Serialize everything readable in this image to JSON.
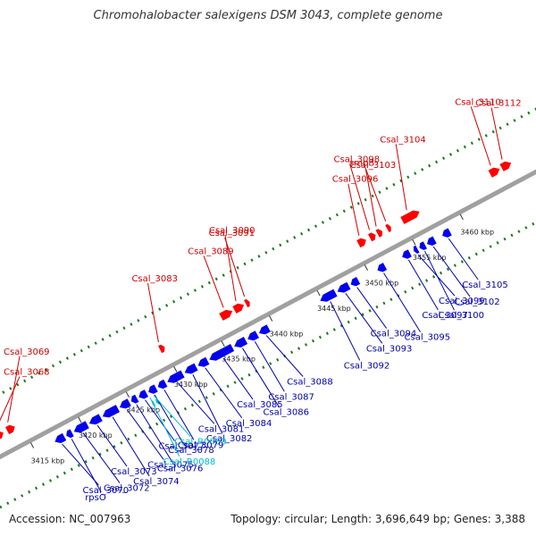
{
  "title": "Chromohalobacter salexigens DSM 3043, complete genome",
  "footer": {
    "accession": "Accession: NC_007963",
    "summary": "Topology: circular; Length: 3,696,649 bp; Genes: 3,388"
  },
  "colors": {
    "axis": "#a0a0a0",
    "fwd_cds": "#ff0000",
    "rev_cds": "#0000ee",
    "fwd_label": "#cc0000",
    "rev_label": "#0000aa",
    "rna_label": "#00bbcc",
    "dots": "#1a7a1a"
  },
  "ticks": [
    {
      "kbp": 3415,
      "label": "3415 kbp"
    },
    {
      "kbp": 3420,
      "label": "3420 kbp"
    },
    {
      "kbp": 3425,
      "label": "3425 kbp"
    },
    {
      "kbp": 3430,
      "label": "3430 kbp"
    },
    {
      "kbp": 3435,
      "label": "3435 kbp"
    },
    {
      "kbp": 3440,
      "label": "3440 kbp"
    },
    {
      "kbp": 3445,
      "label": "3445 kbp"
    },
    {
      "kbp": 3450,
      "label": "3450 kbp"
    },
    {
      "kbp": 3455,
      "label": "3455 kbp"
    },
    {
      "kbp": 3460,
      "label": "3460 kbp"
    }
  ],
  "forward_genes": [
    {
      "name": "Csal_3068",
      "start": 3412.4,
      "end": 3413.2
    },
    {
      "name": "Csal_3069",
      "start": 3413.6,
      "end": 3414.4
    },
    {
      "name": "Csal_3083",
      "start": 3429.6,
      "end": 3430.1
    },
    {
      "name": "Csal_3089",
      "start": 3436.0,
      "end": 3437.2
    },
    {
      "name": "Csal_3090",
      "start": 3437.4,
      "end": 3438.4
    },
    {
      "name": "Csal_3091",
      "start": 3438.6,
      "end": 3439.0
    },
    {
      "name": "Csal_3096",
      "start": 3450.4,
      "end": 3451.2
    },
    {
      "name": "Csal_3098",
      "start": 3451.6,
      "end": 3452.2
    },
    {
      "name": "smpB",
      "start": 3452.4,
      "end": 3452.9
    },
    {
      "name": "Csal_3103",
      "start": 3453.4,
      "end": 3453.8
    },
    {
      "name": "Csal_3104",
      "start": 3455.0,
      "end": 3456.8
    },
    {
      "name": "Csal_3110",
      "start": 3464.2,
      "end": 3465.2
    },
    {
      "name": "Csal_3112",
      "start": 3465.4,
      "end": 3466.4
    }
  ],
  "reverse_genes": [
    {
      "name": "Csal_3070",
      "start": 3417.0,
      "end": 3418.0
    },
    {
      "name": "rpsO",
      "start": 3418.2,
      "end": 3418.8
    },
    {
      "name": "Csal_3072",
      "start": 3419.0,
      "end": 3420.4
    },
    {
      "name": "Csal_3073",
      "start": 3420.6,
      "end": 3421.8
    },
    {
      "name": "Csal_3074",
      "start": 3422.0,
      "end": 3423.6
    },
    {
      "name": "Csal_3075",
      "start": 3423.8,
      "end": 3424.8
    },
    {
      "name": "Csal_3076",
      "start": 3425.0,
      "end": 3425.6
    },
    {
      "name": "Csal_3077",
      "start": 3425.8,
      "end": 3426.6
    },
    {
      "name": "Csal_3078",
      "start": 3426.8,
      "end": 3427.6
    },
    {
      "name": "Csal_3079",
      "start": 3427.8,
      "end": 3428.6
    },
    {
      "name": "Csal_3081",
      "start": 3428.8,
      "end": 3430.4
    },
    {
      "name": "Csal_3082",
      "start": 3430.6,
      "end": 3431.8
    },
    {
      "name": "Csal_3084",
      "start": 3432.0,
      "end": 3433.0
    },
    {
      "name": "Csal_3085",
      "start": 3433.2,
      "end": 3435.6
    },
    {
      "name": "Csal_3086",
      "start": 3435.8,
      "end": 3437.0
    },
    {
      "name": "Csal_3087",
      "start": 3437.2,
      "end": 3438.2
    },
    {
      "name": "Csal_3088",
      "start": 3438.4,
      "end": 3439.4
    },
    {
      "name": "Csal_3092",
      "start": 3444.8,
      "end": 3446.4
    },
    {
      "name": "Csal_3093",
      "start": 3446.6,
      "end": 3447.8
    },
    {
      "name": "Csal_3094",
      "start": 3448.0,
      "end": 3448.8
    },
    {
      "name": "Csal_3095",
      "start": 3450.8,
      "end": 3451.6
    },
    {
      "name": "Csal_3097",
      "start": 3453.4,
      "end": 3454.2
    },
    {
      "name": "Csal_3099",
      "start": 3454.6,
      "end": 3455.0
    },
    {
      "name": "Csal_3100",
      "start": 3455.2,
      "end": 3455.8
    },
    {
      "name": "Csal_3102",
      "start": 3456.0,
      "end": 3456.8
    },
    {
      "name": "Csal_3105",
      "start": 3457.6,
      "end": 3458.4
    }
  ],
  "rna_genes": [
    {
      "name": "Csal_R0088",
      "start": 3426.6,
      "end": 3426.8
    },
    {
      "name": "Csal_R0089",
      "start": 3427.0,
      "end": 3427.2
    }
  ],
  "labels": [
    {
      "name": "Csal_3112",
      "strand": "fwd",
      "kbp": 3465.8
    },
    {
      "name": "Csal_3110",
      "strand": "fwd",
      "kbp": 3464.6
    },
    {
      "name": "Csal_3104",
      "strand": "fwd",
      "kbp": 3455.8
    },
    {
      "name": "Csal_3103",
      "strand": "fwd",
      "kbp": 3453.6
    },
    {
      "name": "smpB",
      "strand": "fwd",
      "kbp": 3452.6
    },
    {
      "name": "Csal_3098",
      "strand": "fwd",
      "kbp": 3451.9
    },
    {
      "name": "Csal_3096",
      "strand": "fwd",
      "kbp": 3450.8
    },
    {
      "name": "Csal_3091",
      "strand": "fwd",
      "kbp": 3438.8
    },
    {
      "name": "Csal_3090",
      "strand": "fwd",
      "kbp": 3437.9
    },
    {
      "name": "Csal_3089",
      "strand": "fwd",
      "kbp": 3436.6
    },
    {
      "name": "Csal_3083",
      "strand": "fwd",
      "kbp": 3429.8
    },
    {
      "name": "Csal_3069",
      "strand": "fwd",
      "kbp": 3414.0
    },
    {
      "name": "Csal_3068",
      "strand": "fwd",
      "kbp": 3412.8
    },
    {
      "name": "Csal_3105",
      "strand": "rev",
      "kbp": 3458.0
    },
    {
      "name": "Csal_3102",
      "strand": "rev",
      "kbp": 3456.4
    },
    {
      "name": "Csal_3100",
      "strand": "rev",
      "kbp": 3455.5
    },
    {
      "name": "Csal_3099",
      "strand": "rev",
      "kbp": 3454.8
    },
    {
      "name": "Csal_3097",
      "strand": "rev",
      "kbp": 3453.8
    },
    {
      "name": "Csal_3095",
      "strand": "rev",
      "kbp": 3451.2
    },
    {
      "name": "Csal_3094",
      "strand": "rev",
      "kbp": 3448.4
    },
    {
      "name": "Csal_3093",
      "strand": "rev",
      "kbp": 3447.2
    },
    {
      "name": "Csal_3092",
      "strand": "rev",
      "kbp": 3445.6
    },
    {
      "name": "Csal_3088",
      "strand": "rev",
      "kbp": 3438.9
    },
    {
      "name": "Csal_3087",
      "strand": "rev",
      "kbp": 3437.7
    },
    {
      "name": "Csal_3086",
      "strand": "rev",
      "kbp": 3436.4
    },
    {
      "name": "Csal_3085",
      "strand": "rev",
      "kbp": 3434.4
    },
    {
      "name": "Csal_3084",
      "strand": "rev",
      "kbp": 3432.5
    },
    {
      "name": "Csal_3082",
      "strand": "rev",
      "kbp": 3431.2
    },
    {
      "name": "Csal_3081",
      "strand": "rev",
      "kbp": 3429.6
    },
    {
      "name": "Csal_3078",
      "strand": "rev",
      "kbp": 3427.2
    },
    {
      "name": "Csal_3076",
      "strand": "rev",
      "kbp": 3425.3
    },
    {
      "name": "Csal_3077",
      "strand": "rev",
      "kbp": 3426.2
    },
    {
      "name": "Csal_3075",
      "strand": "rev",
      "kbp": 3424.3
    },
    {
      "name": "Csal_R0088",
      "strand": "rna",
      "kbp": 3426.7
    },
    {
      "name": "Csal_R0089",
      "strand": "rna",
      "kbp": 3427.1
    },
    {
      "name": "Csal_3079",
      "strand": "rev",
      "kbp": 3428.2
    },
    {
      "name": "Csal_3074",
      "strand": "rev",
      "kbp": 3422.8
    },
    {
      "name": "Csal_3073",
      "strand": "rev",
      "kbp": 3421.2
    },
    {
      "name": "Csal_3072",
      "strand": "rev",
      "kbp": 3419.7
    },
    {
      "name": "rpsO",
      "strand": "rev",
      "kbp": 3418.5
    },
    {
      "name": "Csal_3070",
      "strand": "rev",
      "kbp": 3417.5
    }
  ]
}
